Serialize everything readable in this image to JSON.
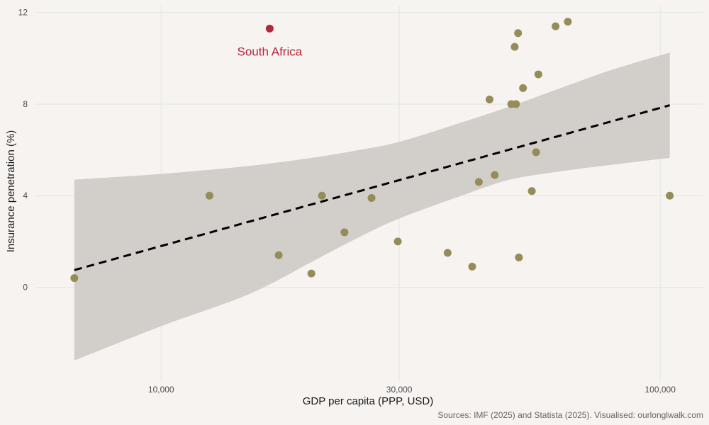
{
  "chart_data": {
    "type": "scatter",
    "title": "",
    "xlabel": "GDP per capita (PPP, USD)",
    "ylabel": "Insurance penetration (%)",
    "caption": "Sources: IMF (2025) and Statista (2025). Visualised: ourlonglwalk.com",
    "x_scale": "log",
    "xlim": [
      5600,
      122000
    ],
    "ylim": [
      -4.1,
      12.3
    ],
    "x_ticks": [
      {
        "value": 10000,
        "label": "10,000"
      },
      {
        "value": 30000,
        "label": "30,000"
      },
      {
        "value": 100000,
        "label": "100,000"
      }
    ],
    "y_ticks": [
      {
        "value": 0,
        "label": "0"
      },
      {
        "value": 4,
        "label": "4"
      },
      {
        "value": 8,
        "label": "8"
      },
      {
        "value": 12,
        "label": "12"
      }
    ],
    "grid": true,
    "points": [
      {
        "x": 6700,
        "y": 0.4
      },
      {
        "x": 12500,
        "y": 4.0
      },
      {
        "x": 16500,
        "y": 11.3,
        "label": "South Africa",
        "highlight": true
      },
      {
        "x": 17200,
        "y": 1.4
      },
      {
        "x": 20000,
        "y": 0.6
      },
      {
        "x": 21000,
        "y": 4.0
      },
      {
        "x": 23300,
        "y": 2.4
      },
      {
        "x": 26400,
        "y": 3.9
      },
      {
        "x": 29800,
        "y": 2.0
      },
      {
        "x": 37500,
        "y": 1.5
      },
      {
        "x": 42000,
        "y": 0.9
      },
      {
        "x": 43300,
        "y": 4.6
      },
      {
        "x": 45500,
        "y": 8.2
      },
      {
        "x": 46600,
        "y": 4.9
      },
      {
        "x": 50300,
        "y": 8.0
      },
      {
        "x": 51100,
        "y": 10.5
      },
      {
        "x": 51400,
        "y": 8.0
      },
      {
        "x": 51900,
        "y": 11.1
      },
      {
        "x": 52100,
        "y": 1.3
      },
      {
        "x": 53100,
        "y": 8.7
      },
      {
        "x": 55300,
        "y": 4.2
      },
      {
        "x": 56400,
        "y": 5.9
      },
      {
        "x": 57000,
        "y": 9.3
      },
      {
        "x": 61700,
        "y": 11.4
      },
      {
        "x": 65300,
        "y": 11.6
      },
      {
        "x": 104500,
        "y": 4.0
      }
    ],
    "trend": {
      "style": "dashed",
      "x_range": [
        6700,
        104500
      ],
      "y_at_start": 0.75,
      "y_at_end": 7.95,
      "ci_lower": [
        {
          "x": 6700,
          "y": -3.2
        },
        {
          "x": 10000,
          "y": -1.7
        },
        {
          "x": 15000,
          "y": -0.3
        },
        {
          "x": 20000,
          "y": 1.1
        },
        {
          "x": 25000,
          "y": 2.2
        },
        {
          "x": 30000,
          "y": 3.0
        },
        {
          "x": 40000,
          "y": 4.0
        },
        {
          "x": 50000,
          "y": 4.7
        },
        {
          "x": 65000,
          "y": 5.1
        },
        {
          "x": 80000,
          "y": 5.35
        },
        {
          "x": 104500,
          "y": 5.65
        }
      ],
      "ci_upper": [
        {
          "x": 6700,
          "y": 4.7
        },
        {
          "x": 10000,
          "y": 4.95
        },
        {
          "x": 15000,
          "y": 5.3
        },
        {
          "x": 20000,
          "y": 5.65
        },
        {
          "x": 25000,
          "y": 6.0
        },
        {
          "x": 30000,
          "y": 6.35
        },
        {
          "x": 40000,
          "y": 7.2
        },
        {
          "x": 50000,
          "y": 7.9
        },
        {
          "x": 65000,
          "y": 8.8
        },
        {
          "x": 80000,
          "y": 9.5
        },
        {
          "x": 104500,
          "y": 10.25
        }
      ]
    },
    "colors": {
      "background": "#f6f3f1",
      "grid": "#e3e7e3",
      "point": "#958c57",
      "highlight": "#b3283a",
      "ci_band": "#d2ceca",
      "trend": "#000000"
    }
  }
}
